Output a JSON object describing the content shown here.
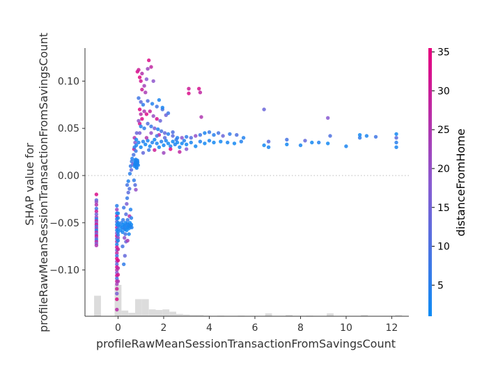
{
  "chart_data": {
    "type": "scatter",
    "title": "",
    "xlabel": "profileRawMeanSessionTransactionFromSavingsCount",
    "ylabel_lines": [
      "SHAP value for",
      "profileRawMeanSessionTransactionFromSavingsCount"
    ],
    "xlim": [
      -1.45,
      12.75
    ],
    "ylim": [
      -0.149,
      0.135
    ],
    "x_ticks": [
      {
        "value": 0,
        "label": "0"
      },
      {
        "value": 2,
        "label": "2"
      },
      {
        "value": 4,
        "label": "4"
      },
      {
        "value": 6,
        "label": "6"
      },
      {
        "value": 8,
        "label": "8"
      },
      {
        "value": 10,
        "label": "10"
      },
      {
        "value": 12,
        "label": "12"
      }
    ],
    "y_ticks": [
      {
        "value": 0.1,
        "label": "0.10"
      },
      {
        "value": 0.05,
        "label": "0.05"
      },
      {
        "value": 0.0,
        "label": "0.00"
      },
      {
        "value": -0.05,
        "label": "−0.05"
      },
      {
        "value": -0.1,
        "label": "−0.10"
      }
    ],
    "zero_line": 0.0,
    "colorbar": {
      "label": "distanceFromHome",
      "range": [
        1,
        35.5
      ],
      "ticks": [
        {
          "value": 5,
          "label": "5"
        },
        {
          "value": 10,
          "label": "10"
        },
        {
          "value": 15,
          "label": "15"
        },
        {
          "value": 20,
          "label": "20"
        },
        {
          "value": 25,
          "label": "25"
        },
        {
          "value": 30,
          "label": "30"
        },
        {
          "value": 35,
          "label": "35"
        }
      ],
      "colors": [
        "#0d8bf4",
        "#8a5ad0",
        "#e8007d"
      ]
    },
    "histogram": {
      "color": "#dcdcdc",
      "bins": [
        {
          "x0": -1.05,
          "x1": -0.75,
          "count": 36
        },
        {
          "x0": -0.15,
          "x1": 0.15,
          "count": 55
        },
        {
          "x0": 0.15,
          "x1": 0.45,
          "count": 10
        },
        {
          "x0": 0.45,
          "x1": 0.75,
          "count": 6
        },
        {
          "x0": 0.75,
          "x1": 1.05,
          "count": 30
        },
        {
          "x0": 1.05,
          "x1": 1.35,
          "count": 30
        },
        {
          "x0": 1.35,
          "x1": 1.65,
          "count": 12
        },
        {
          "x0": 1.65,
          "x1": 1.95,
          "count": 11
        },
        {
          "x0": 1.95,
          "x1": 2.25,
          "count": 12
        },
        {
          "x0": 2.25,
          "x1": 2.55,
          "count": 8
        },
        {
          "x0": 2.55,
          "x1": 2.85,
          "count": 4
        },
        {
          "x0": 2.85,
          "x1": 3.15,
          "count": 3
        },
        {
          "x0": 3.15,
          "x1": 3.45,
          "count": 2
        },
        {
          "x0": 3.45,
          "x1": 3.75,
          "count": 2
        },
        {
          "x0": 3.75,
          "x1": 4.05,
          "count": 1
        },
        {
          "x0": 4.35,
          "x1": 4.65,
          "count": 1
        },
        {
          "x0": 5.25,
          "x1": 5.55,
          "count": 1
        },
        {
          "x0": 6.45,
          "x1": 6.75,
          "count": 5
        },
        {
          "x0": 7.35,
          "x1": 7.65,
          "count": 2
        },
        {
          "x0": 8.25,
          "x1": 8.55,
          "count": 1
        },
        {
          "x0": 9.15,
          "x1": 9.45,
          "count": 5
        },
        {
          "x0": 10.65,
          "x1": 10.95,
          "count": 2
        },
        {
          "x0": 12.15,
          "x1": 12.45,
          "count": 2
        }
      ]
    },
    "points": [
      [
        -0.95,
        -0.02,
        33
      ],
      [
        -0.95,
        -0.026,
        12
      ],
      [
        -0.95,
        -0.028,
        20
      ],
      [
        -0.95,
        -0.031,
        26
      ],
      [
        -0.95,
        -0.035,
        8
      ],
      [
        -0.95,
        -0.038,
        30
      ],
      [
        -0.95,
        -0.041,
        15
      ],
      [
        -0.95,
        -0.044,
        22
      ],
      [
        -0.95,
        -0.046,
        5
      ],
      [
        -0.95,
        -0.048,
        28
      ],
      [
        -0.95,
        -0.05,
        18
      ],
      [
        -0.95,
        -0.052,
        31
      ],
      [
        -0.95,
        -0.054,
        10
      ],
      [
        -0.95,
        -0.056,
        24
      ],
      [
        -0.95,
        -0.058,
        3
      ],
      [
        -0.95,
        -0.06,
        27
      ],
      [
        -0.95,
        -0.062,
        14
      ],
      [
        -0.95,
        -0.064,
        33
      ],
      [
        -0.95,
        -0.066,
        20
      ],
      [
        -0.95,
        -0.068,
        7
      ],
      [
        -0.95,
        -0.07,
        29
      ],
      [
        -0.95,
        -0.072,
        17
      ],
      [
        -0.95,
        -0.074,
        25
      ],
      [
        -0.05,
        -0.032,
        5
      ],
      [
        -0.05,
        -0.036,
        22
      ],
      [
        -0.05,
        -0.04,
        3
      ],
      [
        -0.05,
        -0.043,
        30
      ],
      [
        -0.05,
        -0.046,
        4
      ],
      [
        -0.05,
        -0.049,
        13
      ],
      [
        -0.05,
        -0.052,
        2
      ],
      [
        -0.05,
        -0.055,
        27
      ],
      [
        -0.05,
        -0.058,
        6
      ],
      [
        -0.05,
        -0.061,
        19
      ],
      [
        -0.05,
        -0.064,
        33
      ],
      [
        -0.05,
        -0.067,
        10
      ],
      [
        -0.05,
        -0.07,
        24
      ],
      [
        -0.05,
        -0.073,
        3
      ],
      [
        -0.05,
        -0.076,
        31
      ],
      [
        -0.05,
        -0.079,
        15
      ],
      [
        -0.05,
        -0.082,
        28
      ],
      [
        -0.05,
        -0.085,
        8
      ],
      [
        -0.05,
        -0.088,
        34
      ],
      [
        -0.05,
        -0.091,
        21
      ],
      [
        -0.05,
        -0.094,
        12
      ],
      [
        -0.05,
        -0.097,
        33
      ],
      [
        -0.05,
        -0.1,
        26
      ],
      [
        -0.05,
        -0.103,
        18
      ],
      [
        -0.05,
        -0.106,
        32
      ],
      [
        -0.05,
        -0.109,
        9
      ],
      [
        -0.05,
        -0.112,
        29
      ],
      [
        -0.05,
        -0.115,
        23
      ],
      [
        -0.05,
        -0.12,
        30
      ],
      [
        -0.05,
        -0.125,
        16
      ],
      [
        -0.05,
        -0.131,
        33
      ],
      [
        -0.05,
        -0.142,
        27
      ],
      [
        0.0,
        -0.04,
        2
      ],
      [
        0.0,
        -0.045,
        3
      ],
      [
        0.0,
        -0.05,
        2
      ],
      [
        0.0,
        -0.053,
        4
      ],
      [
        0.0,
        -0.057,
        3
      ],
      [
        0.0,
        -0.06,
        2
      ],
      [
        0.0,
        -0.063,
        5
      ],
      [
        0.0,
        -0.066,
        20
      ],
      [
        0.0,
        -0.069,
        2
      ],
      [
        0.0,
        -0.078,
        30
      ],
      [
        0.0,
        -0.09,
        34
      ],
      [
        0.0,
        -0.098,
        28
      ],
      [
        0.0,
        -0.105,
        31
      ],
      [
        0.0,
        -0.112,
        25
      ],
      [
        0.05,
        -0.052,
        2
      ],
      [
        0.1,
        -0.054,
        3
      ],
      [
        0.12,
        -0.058,
        2
      ],
      [
        0.15,
        -0.05,
        4
      ],
      [
        0.18,
        -0.055,
        2
      ],
      [
        0.2,
        -0.06,
        3
      ],
      [
        0.22,
        -0.052,
        2
      ],
      [
        0.25,
        -0.056,
        5
      ],
      [
        0.28,
        -0.053,
        2
      ],
      [
        0.3,
        -0.057,
        3
      ],
      [
        0.32,
        -0.05,
        2
      ],
      [
        0.35,
        -0.054,
        4
      ],
      [
        0.38,
        -0.058,
        2
      ],
      [
        0.4,
        -0.051,
        3
      ],
      [
        0.42,
        -0.055,
        2
      ],
      [
        0.45,
        -0.052,
        4
      ],
      [
        0.48,
        -0.056,
        2
      ],
      [
        0.5,
        -0.053,
        3
      ],
      [
        0.52,
        -0.05,
        2
      ],
      [
        0.55,
        -0.054,
        3
      ],
      [
        0.58,
        -0.052,
        2
      ],
      [
        0.6,
        -0.055,
        4
      ],
      [
        0.22,
        -0.047,
        6
      ],
      [
        0.32,
        -0.062,
        9
      ],
      [
        0.25,
        -0.034,
        8
      ],
      [
        0.35,
        -0.041,
        11
      ],
      [
        0.42,
        -0.047,
        6
      ],
      [
        0.28,
        -0.066,
        20
      ],
      [
        0.35,
        -0.07,
        14
      ],
      [
        0.4,
        -0.024,
        7
      ],
      [
        0.45,
        -0.018,
        12
      ],
      [
        0.38,
        -0.03,
        16
      ],
      [
        0.5,
        -0.043,
        26
      ],
      [
        0.55,
        -0.036,
        4
      ],
      [
        0.2,
        -0.075,
        9
      ],
      [
        0.3,
        -0.085,
        13
      ],
      [
        0.25,
        -0.094,
        6
      ],
      [
        0.42,
        -0.069,
        24
      ],
      [
        0.48,
        -0.062,
        3
      ],
      [
        0.58,
        -0.045,
        5
      ],
      [
        0.4,
        -0.01,
        9
      ],
      [
        0.45,
        -0.006,
        4
      ],
      [
        0.5,
        -0.014,
        10
      ],
      [
        0.52,
        0.002,
        5
      ],
      [
        0.55,
        0.01,
        6
      ],
      [
        0.58,
        0.006,
        12
      ],
      [
        0.6,
        0.015,
        7
      ],
      [
        0.62,
        0.018,
        4
      ],
      [
        0.65,
        0.012,
        15
      ],
      [
        0.68,
        0.022,
        9
      ],
      [
        0.7,
        0.028,
        30
      ],
      [
        0.72,
        0.03,
        5
      ],
      [
        0.75,
        0.035,
        18
      ],
      [
        0.78,
        0.026,
        7
      ],
      [
        0.8,
        0.032,
        3
      ],
      [
        0.7,
        -0.005,
        6
      ],
      [
        0.75,
        -0.01,
        11
      ],
      [
        0.78,
        -0.015,
        20
      ],
      [
        0.72,
        0.04,
        25
      ],
      [
        0.82,
        0.045,
        14
      ],
      [
        0.72,
        0.01,
        3
      ],
      [
        0.74,
        0.012,
        3
      ],
      [
        0.76,
        0.014,
        3
      ],
      [
        0.78,
        0.011,
        3
      ],
      [
        0.8,
        0.013,
        3
      ],
      [
        0.82,
        0.015,
        3
      ],
      [
        0.84,
        0.012,
        3
      ],
      [
        0.86,
        0.014,
        3
      ],
      [
        0.88,
        0.011,
        3
      ],
      [
        0.75,
        0.016,
        3
      ],
      [
        0.8,
        0.009,
        3
      ],
      [
        0.85,
        0.016,
        3
      ],
      [
        0.78,
        0.017,
        3
      ],
      [
        0.82,
        0.008,
        3
      ],
      [
        0.77,
        0.013,
        3
      ],
      [
        0.83,
        0.013,
        3
      ],
      [
        0.85,
        0.11,
        33
      ],
      [
        0.9,
        0.112,
        30
      ],
      [
        0.95,
        0.104,
        34
      ],
      [
        1.0,
        0.1,
        31
      ],
      [
        1.05,
        0.108,
        26
      ],
      [
        1.15,
        0.095,
        23
      ],
      [
        1.25,
        0.102,
        18
      ],
      [
        1.3,
        0.113,
        22
      ],
      [
        1.35,
        0.122,
        33
      ],
      [
        1.45,
        0.115,
        28
      ],
      [
        1.55,
        0.1,
        19
      ],
      [
        1.05,
        0.091,
        30
      ],
      [
        1.2,
        0.088,
        24
      ],
      [
        0.9,
        0.082,
        8
      ],
      [
        1.0,
        0.078,
        12
      ],
      [
        1.1,
        0.075,
        6
      ],
      [
        1.3,
        0.079,
        10
      ],
      [
        1.5,
        0.076,
        4
      ],
      [
        1.7,
        0.073,
        8
      ],
      [
        1.8,
        0.08,
        3
      ],
      [
        1.95,
        0.07,
        9
      ],
      [
        2.1,
        0.064,
        15
      ],
      [
        0.95,
        0.07,
        34
      ],
      [
        1.0,
        0.065,
        27
      ],
      [
        1.05,
        0.06,
        33
      ],
      [
        0.95,
        0.055,
        31
      ],
      [
        0.9,
        0.058,
        20
      ],
      [
        1.15,
        0.068,
        25
      ],
      [
        1.25,
        0.065,
        33
      ],
      [
        1.4,
        0.068,
        29
      ],
      [
        1.55,
        0.063,
        21
      ],
      [
        1.7,
        0.06,
        32
      ],
      [
        1.85,
        0.058,
        14
      ],
      [
        1.0,
        0.052,
        4
      ],
      [
        1.15,
        0.05,
        6
      ],
      [
        1.3,
        0.055,
        11
      ],
      [
        1.45,
        0.052,
        7
      ],
      [
        1.6,
        0.05,
        16
      ],
      [
        1.75,
        0.049,
        3
      ],
      [
        1.9,
        0.047,
        9
      ],
      [
        2.05,
        0.045,
        13
      ],
      [
        2.2,
        0.044,
        5
      ],
      [
        2.4,
        0.042,
        12
      ],
      [
        2.6,
        0.04,
        4
      ],
      [
        2.8,
        0.04,
        19
      ],
      [
        3.0,
        0.041,
        6
      ],
      [
        3.2,
        0.04,
        11
      ],
      [
        3.4,
        0.042,
        20
      ],
      [
        3.6,
        0.043,
        8
      ],
      [
        3.8,
        0.045,
        3
      ],
      [
        4.0,
        0.046,
        7
      ],
      [
        4.2,
        0.043,
        5
      ],
      [
        4.4,
        0.045,
        9
      ],
      [
        4.6,
        0.042,
        14
      ],
      [
        4.9,
        0.044,
        6
      ],
      [
        5.2,
        0.043,
        10
      ],
      [
        5.5,
        0.04,
        4
      ],
      [
        6.4,
        0.07,
        14
      ],
      [
        6.6,
        0.036,
        12
      ],
      [
        7.4,
        0.038,
        9
      ],
      [
        8.2,
        0.037,
        13
      ],
      [
        9.2,
        0.061,
        18
      ],
      [
        9.3,
        0.042,
        10
      ],
      [
        10.6,
        0.04,
        6
      ],
      [
        11.3,
        0.041,
        8
      ],
      [
        12.2,
        0.04,
        12
      ],
      [
        12.2,
        0.035,
        5
      ],
      [
        3.1,
        0.092,
        30
      ],
      [
        3.1,
        0.087,
        33
      ],
      [
        3.55,
        0.092,
        32
      ],
      [
        3.6,
        0.088,
        28
      ],
      [
        3.65,
        0.062,
        25
      ],
      [
        1.95,
        0.072,
        3
      ],
      [
        2.2,
        0.066,
        8
      ],
      [
        0.8,
        0.038,
        2
      ],
      [
        0.9,
        0.035,
        3
      ],
      [
        1.0,
        0.03,
        2
      ],
      [
        1.1,
        0.036,
        4
      ],
      [
        1.2,
        0.033,
        2
      ],
      [
        1.3,
        0.037,
        3
      ],
      [
        1.4,
        0.031,
        2
      ],
      [
        1.5,
        0.035,
        4
      ],
      [
        1.6,
        0.038,
        2
      ],
      [
        1.7,
        0.034,
        3
      ],
      [
        1.8,
        0.03,
        2
      ],
      [
        1.9,
        0.036,
        4
      ],
      [
        2.0,
        0.032,
        2
      ],
      [
        2.1,
        0.037,
        3
      ],
      [
        2.2,
        0.034,
        2
      ],
      [
        2.3,
        0.031,
        4
      ],
      [
        2.4,
        0.036,
        2
      ],
      [
        2.5,
        0.033,
        3
      ],
      [
        2.6,
        0.035,
        2
      ],
      [
        2.7,
        0.03,
        3
      ],
      [
        2.8,
        0.034,
        2
      ],
      [
        2.9,
        0.037,
        4
      ],
      [
        3.0,
        0.033,
        2
      ],
      [
        3.2,
        0.035,
        3
      ],
      [
        3.4,
        0.031,
        2
      ],
      [
        3.6,
        0.036,
        4
      ],
      [
        3.8,
        0.034,
        2
      ],
      [
        4.0,
        0.037,
        3
      ],
      [
        4.2,
        0.035,
        2
      ],
      [
        4.5,
        0.036,
        2
      ],
      [
        4.8,
        0.035,
        3
      ],
      [
        5.1,
        0.034,
        2
      ],
      [
        5.4,
        0.036,
        4
      ],
      [
        6.4,
        0.032,
        2
      ],
      [
        6.6,
        0.03,
        3
      ],
      [
        7.4,
        0.033,
        2
      ],
      [
        8.0,
        0.032,
        3
      ],
      [
        8.5,
        0.035,
        2
      ],
      [
        8.8,
        0.035,
        4
      ],
      [
        9.2,
        0.034,
        2
      ],
      [
        10.0,
        0.031,
        3
      ],
      [
        10.6,
        0.043,
        2
      ],
      [
        10.9,
        0.042,
        3
      ],
      [
        12.2,
        0.044,
        2
      ],
      [
        12.2,
        0.03,
        3
      ],
      [
        1.25,
        0.04,
        25
      ],
      [
        1.6,
        0.027,
        30
      ],
      [
        2.0,
        0.024,
        22
      ],
      [
        2.3,
        0.028,
        33
      ],
      [
        2.7,
        0.025,
        28
      ],
      [
        3.0,
        0.028,
        18
      ],
      [
        1.1,
        0.024,
        13
      ],
      [
        1.45,
        0.045,
        20
      ],
      [
        1.8,
        0.043,
        27
      ],
      [
        2.4,
        0.046,
        10
      ],
      [
        0.95,
        0.045,
        16
      ],
      [
        1.35,
        0.027,
        7
      ],
      [
        2.05,
        0.04,
        12
      ],
      [
        2.55,
        0.038,
        6
      ],
      [
        1.7,
        0.042,
        9
      ]
    ]
  }
}
